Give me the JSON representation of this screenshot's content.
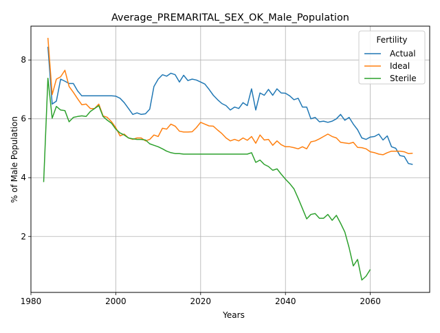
{
  "chart_data": {
    "type": "line",
    "title": "Average_PREMARITAL_SEX_OK_Male_Population",
    "xlabel": "Years",
    "ylabel": "% of Male Population",
    "xlim": [
      1980,
      2074
    ],
    "ylim": [
      0.1,
      9.15
    ],
    "xticks": [
      1980,
      2000,
      2020,
      2040,
      2060
    ],
    "yticks": [
      2,
      4,
      6,
      8
    ],
    "grid": true,
    "legend": {
      "title": "Fertility",
      "position": "top-right"
    },
    "series": [
      {
        "name": "Actual",
        "color": "#1f77b4",
        "x": [
          1984,
          1985,
          1986,
          1987,
          1988,
          1989,
          1990,
          1991,
          1992,
          1993,
          1994,
          1995,
          1996,
          1997,
          1998,
          1999,
          2000,
          2001,
          2002,
          2003,
          2004,
          2005,
          2006,
          2007,
          2008,
          2009,
          2010,
          2011,
          2012,
          2013,
          2014,
          2015,
          2016,
          2017,
          2018,
          2019,
          2020,
          2021,
          2022,
          2023,
          2024,
          2025,
          2026,
          2027,
          2028,
          2029,
          2030,
          2031,
          2032,
          2033,
          2034,
          2035,
          2036,
          2037,
          2038,
          2039,
          2040,
          2041,
          2042,
          2043,
          2044,
          2045,
          2046,
          2047,
          2048,
          2049,
          2050,
          2051,
          2052,
          2053,
          2054,
          2055,
          2056,
          2057,
          2058,
          2059,
          2060,
          2061,
          2062,
          2063,
          2064,
          2065,
          2066,
          2067,
          2068,
          2069,
          2070
        ],
        "values": [
          8.45,
          6.5,
          6.6,
          7.35,
          7.28,
          7.2,
          7.2,
          6.95,
          6.78,
          6.78,
          6.78,
          6.78,
          6.78,
          6.78,
          6.78,
          6.78,
          6.77,
          6.7,
          6.55,
          6.35,
          6.15,
          6.2,
          6.15,
          6.17,
          6.33,
          7.1,
          7.35,
          7.5,
          7.45,
          7.55,
          7.5,
          7.25,
          7.48,
          7.3,
          7.35,
          7.32,
          7.25,
          7.18,
          7.0,
          6.8,
          6.65,
          6.52,
          6.45,
          6.3,
          6.4,
          6.35,
          6.55,
          6.45,
          7.02,
          6.3,
          6.88,
          6.8,
          7.0,
          6.8,
          7.02,
          6.88,
          6.87,
          6.78,
          6.65,
          6.7,
          6.4,
          6.4,
          6.0,
          6.05,
          5.9,
          5.92,
          5.88,
          5.92,
          6.0,
          6.15,
          5.95,
          6.05,
          5.82,
          5.63,
          5.35,
          5.3,
          5.38,
          5.4,
          5.48,
          5.28,
          5.42,
          5.05,
          5.0,
          4.75,
          4.72,
          4.48,
          4.45
        ]
      },
      {
        "name": "Ideal",
        "color": "#ff7f0e",
        "x": [
          1984,
          1985,
          1986,
          1987,
          1988,
          1989,
          1990,
          1991,
          1992,
          1993,
          1994,
          1995,
          1996,
          1997,
          1998,
          1999,
          2000,
          2001,
          2002,
          2003,
          2004,
          2005,
          2006,
          2007,
          2008,
          2009,
          2010,
          2011,
          2012,
          2013,
          2014,
          2015,
          2016,
          2017,
          2018,
          2019,
          2020,
          2021,
          2022,
          2023,
          2024,
          2025,
          2026,
          2027,
          2028,
          2029,
          2030,
          2031,
          2032,
          2033,
          2034,
          2035,
          2036,
          2037,
          2038,
          2039,
          2040,
          2041,
          2042,
          2043,
          2044,
          2045,
          2046,
          2047,
          2048,
          2049,
          2050,
          2051,
          2052,
          2053,
          2054,
          2055,
          2056,
          2057,
          2058,
          2059,
          2060,
          2061,
          2062,
          2063,
          2064,
          2065,
          2066,
          2067,
          2068,
          2069,
          2070
        ],
        "values": [
          8.75,
          6.82,
          7.35,
          7.43,
          7.65,
          7.1,
          6.9,
          6.68,
          6.48,
          6.5,
          6.35,
          6.35,
          6.5,
          6.1,
          6.05,
          5.9,
          5.7,
          5.42,
          5.48,
          5.35,
          5.3,
          5.35,
          5.35,
          5.25,
          5.3,
          5.45,
          5.4,
          5.68,
          5.65,
          5.82,
          5.75,
          5.58,
          5.55,
          5.55,
          5.56,
          5.7,
          5.88,
          5.82,
          5.76,
          5.75,
          5.62,
          5.5,
          5.35,
          5.25,
          5.3,
          5.25,
          5.35,
          5.27,
          5.4,
          5.17,
          5.45,
          5.28,
          5.3,
          5.1,
          5.25,
          5.12,
          5.05,
          5.05,
          5.02,
          4.98,
          5.05,
          4.98,
          5.22,
          5.25,
          5.32,
          5.4,
          5.48,
          5.4,
          5.35,
          5.2,
          5.18,
          5.16,
          5.2,
          5.03,
          5.02,
          4.98,
          4.88,
          4.85,
          4.8,
          4.78,
          4.85,
          4.9,
          4.9,
          4.9,
          4.88,
          4.82,
          4.83
        ]
      },
      {
        "name": "Sterile",
        "color": "#2ca02c",
        "x": [
          1983,
          1984,
          1985,
          1986,
          1987,
          1988,
          1989,
          1990,
          1991,
          1992,
          1993,
          1994,
          1995,
          1996,
          1997,
          1998,
          1999,
          2000,
          2001,
          2002,
          2003,
          2004,
          2005,
          2006,
          2007,
          2008,
          2009,
          2010,
          2011,
          2012,
          2013,
          2014,
          2015,
          2016,
          2017,
          2018,
          2019,
          2020,
          2021,
          2022,
          2023,
          2024,
          2025,
          2026,
          2027,
          2028,
          2029,
          2030,
          2031,
          2032,
          2033,
          2034,
          2035,
          2036,
          2037,
          2038,
          2039,
          2040,
          2041,
          2042,
          2043,
          2044,
          2045,
          2046,
          2047,
          2048,
          2049,
          2050,
          2051,
          2052,
          2053,
          2054,
          2055,
          2056,
          2057,
          2058,
          2059,
          2060
        ],
        "values": [
          3.85,
          7.38,
          6.02,
          6.42,
          6.3,
          6.28,
          5.9,
          6.05,
          6.08,
          6.1,
          6.08,
          6.25,
          6.35,
          6.45,
          6.08,
          5.95,
          5.85,
          5.65,
          5.52,
          5.45,
          5.35,
          5.32,
          5.3,
          5.3,
          5.28,
          5.15,
          5.1,
          5.05,
          4.98,
          4.9,
          4.85,
          4.82,
          4.82,
          4.8,
          4.8,
          4.8,
          4.8,
          4.8,
          4.8,
          4.8,
          4.8,
          4.8,
          4.8,
          4.8,
          4.8,
          4.8,
          4.8,
          4.8,
          4.8,
          4.85,
          4.52,
          4.6,
          4.45,
          4.38,
          4.25,
          4.3,
          4.12,
          3.95,
          3.8,
          3.62,
          3.3,
          2.95,
          2.6,
          2.75,
          2.78,
          2.62,
          2.62,
          2.75,
          2.55,
          2.72,
          2.45,
          2.15,
          1.62,
          1.0,
          1.22,
          0.52,
          0.65,
          0.88
        ]
      }
    ]
  }
}
